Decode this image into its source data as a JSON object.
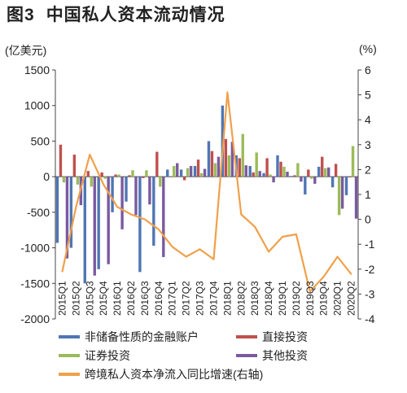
{
  "header": {
    "figure_number": "图3",
    "title": "中国私人资本流动情况"
  },
  "chart_data": {
    "type": "bar",
    "left_unit": "(亿美元)",
    "right_unit": "(%)",
    "ylim": [
      -2000,
      1500
    ],
    "y2lim": [
      -4,
      6
    ],
    "yticks": [
      "1500",
      "1000",
      "500",
      "0",
      "-500",
      "-1000",
      "-1500",
      "-2000"
    ],
    "y2ticks": [
      "6",
      "5",
      "4",
      "3",
      "2",
      "1",
      "0",
      "-1",
      "-2",
      "-3",
      "-4"
    ],
    "categories": [
      "2015Q1",
      "2015Q2",
      "2015Q3",
      "2015Q4",
      "2016Q1",
      "2016Q2",
      "2016Q3",
      "2016Q4",
      "2017Q1",
      "2017Q2",
      "2017Q3",
      "2017Q4",
      "2018Q1",
      "2018Q2",
      "2018Q3",
      "2018Q4",
      "2019Q1",
      "2019Q2",
      "2019Q3",
      "2019Q4",
      "2020Q1",
      "2020Q2"
    ],
    "xtick_labels": [
      "2015Q1",
      "2015Q2",
      "2015Q3",
      "2015Q4",
      "2016Q1",
      "2016Q2",
      "2016Q3",
      "2016Q4",
      "2017Q1",
      "2017Q2",
      "2017Q3",
      "2017Q4",
      "2018Q1",
      "2018Q2",
      "2018Q3",
      "2018Q4",
      "2019Q1",
      "2019Q2",
      "2019Q3",
      "2019Q4",
      "2020Q1",
      "2020Q2"
    ],
    "series": [
      {
        "name": "非储备性质的金融账户",
        "color": "#4f76b3",
        "axis": "left",
        "values": [
          -930,
          -1000,
          -1500,
          -1300,
          -500,
          -350,
          -1340,
          -970,
          100,
          100,
          150,
          500,
          1000,
          300,
          150,
          50,
          300,
          10,
          -250,
          140,
          -150,
          -260
        ]
      },
      {
        "name": "直接投资",
        "color": "#c0504d",
        "axis": "left",
        "values": [
          450,
          310,
          80,
          60,
          30,
          20,
          -20,
          350,
          0,
          -50,
          240,
          360,
          530,
          260,
          60,
          260,
          210,
          20,
          100,
          280,
          180,
          -10
        ]
      },
      {
        "name": "证券投资",
        "color": "#9bbb59",
        "axis": "left",
        "values": [
          -80,
          -110,
          -140,
          -30,
          30,
          90,
          90,
          -140,
          150,
          120,
          50,
          190,
          300,
          600,
          340,
          30,
          140,
          190,
          -30,
          120,
          -540,
          430
        ]
      },
      {
        "name": "其他投资",
        "color": "#7a5aa0",
        "axis": "left",
        "values": [
          -1150,
          -400,
          -1390,
          -1230,
          -740,
          -540,
          -390,
          -1130,
          190,
          150,
          110,
          280,
          490,
          160,
          80,
          -80,
          70,
          -70,
          -100,
          130,
          -450,
          -590
        ]
      },
      {
        "name": "跨境私人资本净流入同比增速(右轴)",
        "color": "#f0a04b",
        "axis": "right",
        "type": "line",
        "values": [
          -2.1,
          0.5,
          2.6,
          1.4,
          0.5,
          0.2,
          0.0,
          -0.4,
          -1.1,
          -1.5,
          -1.2,
          -1.6,
          5.1,
          0.2,
          -0.3,
          -1.3,
          -0.7,
          -0.6,
          -2.9,
          -2.3,
          -1.5,
          -2.2
        ]
      }
    ]
  }
}
